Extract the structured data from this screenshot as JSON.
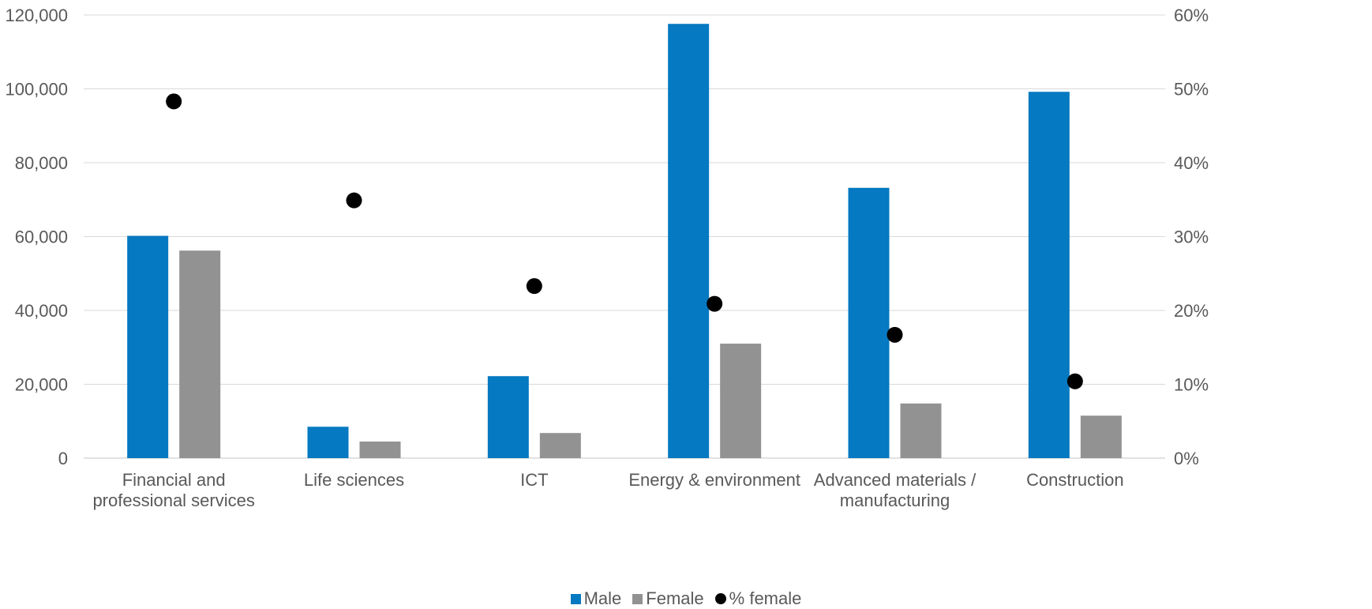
{
  "colors": {
    "male": "#0579C1",
    "female": "#929292",
    "pct": "#000000",
    "grid": "#D9D9D9",
    "text": "#595959"
  },
  "chart_data": {
    "type": "bar",
    "categories": [
      [
        "Financial and",
        "professional services"
      ],
      [
        "Life sciences"
      ],
      [
        "ICT"
      ],
      [
        "Energy & environment"
      ],
      [
        "Advanced materials /",
        "manufacturing"
      ],
      [
        "Construction"
      ]
    ],
    "series": [
      {
        "name": "Male",
        "type": "bar",
        "axis": "left",
        "values": [
          60200,
          8500,
          22200,
          117600,
          73200,
          99200
        ]
      },
      {
        "name": "Female",
        "type": "bar",
        "axis": "left",
        "values": [
          56200,
          4500,
          6800,
          31000,
          14800,
          11500
        ]
      },
      {
        "name": "% female",
        "type": "scatter",
        "axis": "right",
        "values": [
          48.3,
          34.9,
          23.3,
          20.9,
          16.7,
          10.4
        ]
      }
    ],
    "left_axis": {
      "ylim": [
        0,
        120000
      ],
      "ticks": [
        "0",
        "20,000",
        "40,000",
        "60,000",
        "80,000",
        "100,000",
        "120,000"
      ]
    },
    "right_axis": {
      "ylim": [
        0,
        60
      ],
      "ticks": [
        "0%",
        "10%",
        "20%",
        "30%",
        "40%",
        "50%",
        "60%"
      ]
    },
    "grid": true,
    "legend_position": "bottom"
  }
}
